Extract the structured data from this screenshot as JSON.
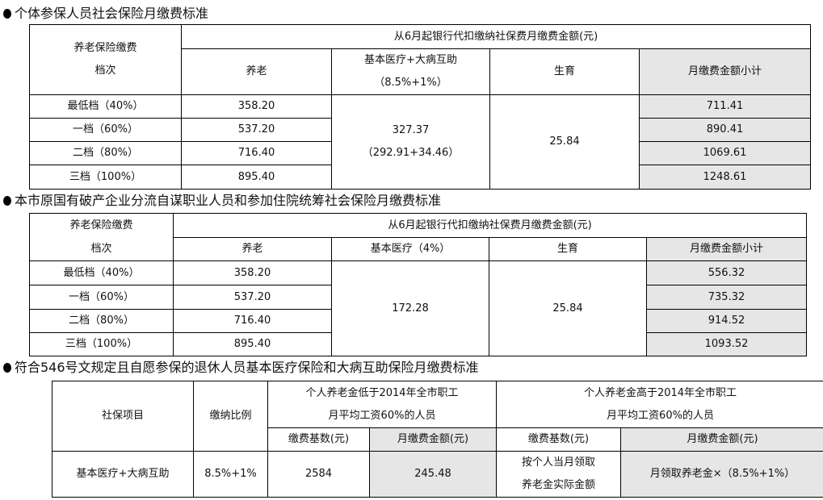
{
  "section1": {
    "title": "个体参保人员社会保险月缴费标准",
    "header": {
      "tier": [
        "养老保险缴费",
        "档次"
      ],
      "group": "从6月起银行代扣缴纳社保费月缴费金额(元)",
      "pension": "养老",
      "medical": [
        "基本医疗+大病互助",
        "（8.5%+1%）"
      ],
      "maternity": "生育",
      "subtotal": "月缴费金额小计"
    },
    "rows": [
      {
        "tier": "最低档（40%）",
        "pension": "358.20",
        "subtotal": "711.41"
      },
      {
        "tier": "一档（60%）",
        "pension": "537.20",
        "subtotal": "890.41"
      },
      {
        "tier": "二档（80%）",
        "pension": "716.40",
        "subtotal": "1069.61"
      },
      {
        "tier": "三档（100%）",
        "pension": "895.40",
        "subtotal": "1248.61"
      }
    ],
    "medical": [
      "327.37",
      "（292.91+34.46）"
    ],
    "maternity": "25.84"
  },
  "section2": {
    "title": "本市原国有破产企业分流自谋职业人员和参加住院统筹社会保险月缴费标准",
    "header": {
      "tier": [
        "养老保险缴费",
        "档次"
      ],
      "group": "从6月起银行代扣缴纳社保费月缴费金额(元)",
      "pension": "养老",
      "medical": "基本医疗（4%）",
      "maternity": "生育",
      "subtotal": "月缴费金额小计"
    },
    "rows": [
      {
        "tier": "最低档（40%）",
        "pension": "358.20",
        "subtotal": "556.32"
      },
      {
        "tier": "一档（60%）",
        "pension": "537.20",
        "subtotal": "735.32"
      },
      {
        "tier": "二档（80%）",
        "pension": "716.40",
        "subtotal": "914.52"
      },
      {
        "tier": "三档（100%）",
        "pension": "895.40",
        "subtotal": "1093.52"
      }
    ],
    "medical": "172.28",
    "maternity": "25.84"
  },
  "section3": {
    "title": "符合546号文规定且自愿参保的退休人员基本医疗保险和大病互助保险月缴费标准",
    "header": {
      "item": "社保项目",
      "ratio": "缴纳比例",
      "low": [
        "个人养老金低于2014年全市职工",
        "月平均工资60%的人员"
      ],
      "high": [
        "个人养老金高于2014年全市职工",
        "月平均工资60%的人员"
      ],
      "base": "缴费基数(元)",
      "amount": "月缴费金额(元)"
    },
    "row": {
      "item": "基本医疗+大病互助",
      "ratio": "8.5%+1%",
      "low_base": "2584",
      "low_amount": "245.48",
      "high_base": [
        "按个人当月领取",
        "养老金实际金额"
      ],
      "high_amount": "月领取养老金×（8.5%+1%）"
    }
  }
}
